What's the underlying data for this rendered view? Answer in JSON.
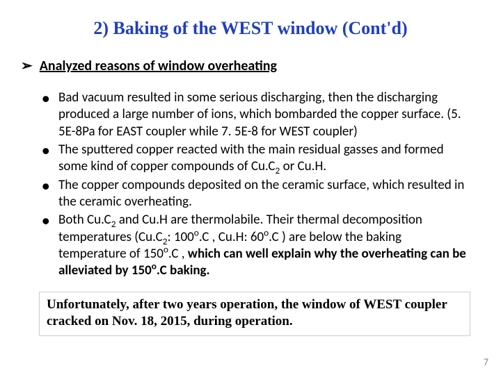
{
  "title": {
    "text": "2) Baking of the WEST window (Cont'd)",
    "color": "#1f3fbf",
    "fontsize": 26
  },
  "section": {
    "marker": "➢",
    "text": "Analyzed reasons of window overheating",
    "fontsize": 20
  },
  "bullets": {
    "fontsize": 19,
    "lineheight": 1.28,
    "disc": "●",
    "items": [
      {
        "plain": "Bad vacuum resulted in some serious discharging, then the discharging produced a large number of ions, which bombarded the copper surface. (5. 5E-8Pa for EAST coupler while 7. 5E-8 for WEST coupler)"
      },
      {
        "html": "The sputtered copper reacted with the main residual gasses and formed some kind of copper compounds of Cu.C<span class=\"sub\">2</span> or Cu.H."
      },
      {
        "plain": "The copper compounds deposited on the ceramic surface, which resulted in the ceramic overheating."
      },
      {
        "html": "Both Cu.C<span class=\"sub\">2</span> and Cu.H are thermolabile. Their thermal decomposition temperatures (Cu.C<span class=\"sub\">2</span>: 100<span class=\"sup\">o</span>.C , Cu.H: 60<span class=\"sup\">o</span>.C ) are below the baking temperature of 150<span class=\"sup\">o</span>.C , <span class=\"b\">which can well explain why the overheating can be alleviated by 150<span class=\"sup\">o</span>.C baking.</span>"
      }
    ]
  },
  "note": {
    "text": "Unfortunately, after two years operation, the window of WEST coupler cracked on Nov. 18, 2015, during operation.",
    "fontsize": 19,
    "lineheight": 1.25
  },
  "pagenum": {
    "text": "7",
    "color": "#8a8a8a",
    "fontsize": 14
  }
}
